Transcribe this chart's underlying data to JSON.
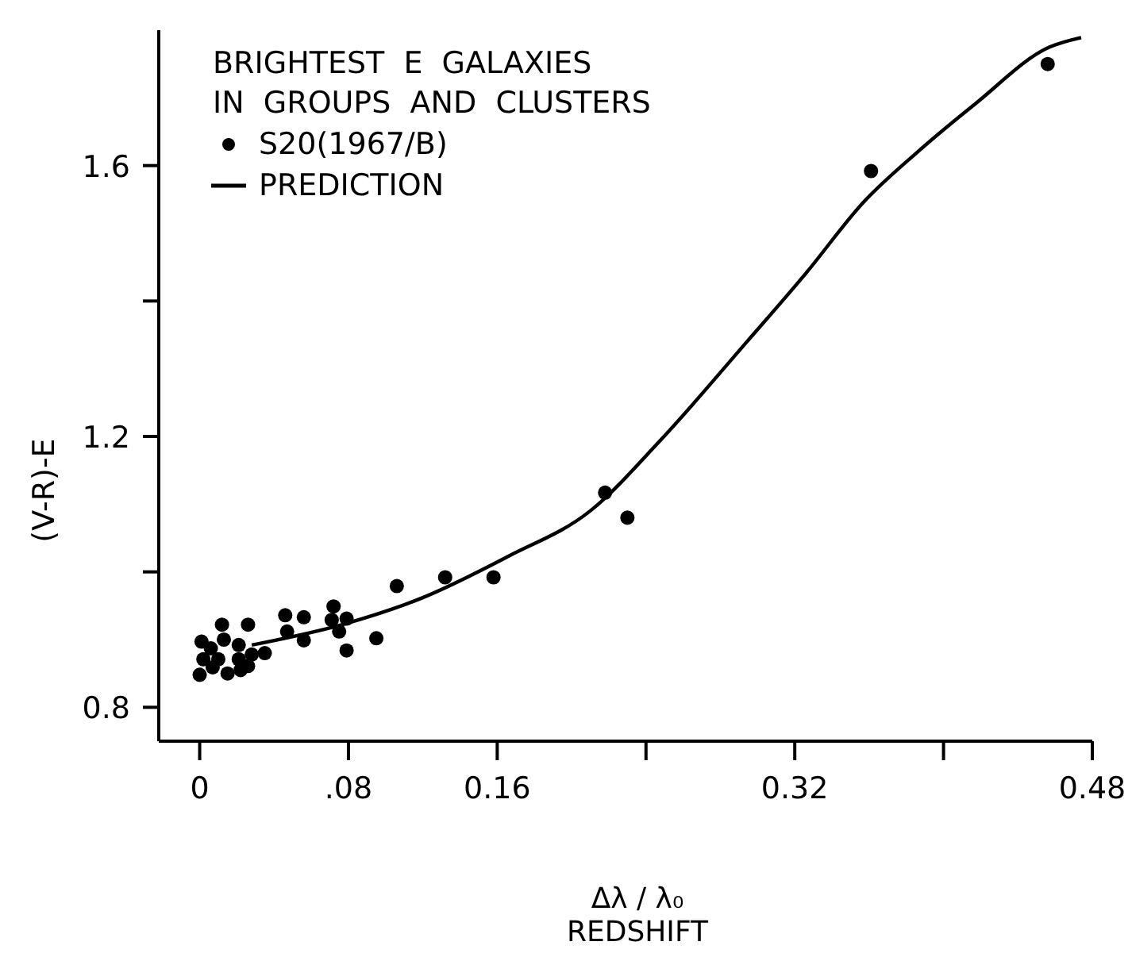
{
  "chart_data": {
    "type": "scatter",
    "title": "BRIGHTEST  E  GALAXIES\nIN  GROUPS  AND  CLUSTERS",
    "xlabel": "Δλ / λ₀\nREDSHIFT",
    "ylabel": "(V-R)-E",
    "xlim": [
      -0.022,
      0.48
    ],
    "ylim": [
      0.75,
      1.8
    ],
    "xticks": [
      0,
      {
        "value": 0.08,
        "label": ".08"
      },
      0.16,
      {
        "value": 0.24,
        "label": null
      },
      0.32,
      {
        "value": 0.4,
        "label": null
      },
      0.48
    ],
    "yticks": [
      0.8,
      {
        "value": 1.0,
        "label": null
      },
      1.2,
      {
        "value": 1.4,
        "label": null
      },
      1.6
    ],
    "legend": "top left",
    "series": [
      {
        "name": "S20(1967/B)",
        "marker": "circle",
        "color": "#000000",
        "x": [
          0.0,
          0.001,
          0.002,
          0.006,
          0.007,
          0.012,
          0.013,
          0.01,
          0.015,
          0.021,
          0.021,
          0.022,
          0.026,
          0.026,
          0.028,
          0.035,
          0.046,
          0.047,
          0.056,
          0.056,
          0.072,
          0.071,
          0.075,
          0.079,
          0.079,
          0.095,
          0.106,
          0.132,
          0.158,
          0.218,
          0.23,
          0.361,
          0.456
        ],
        "values": [
          0.848,
          0.897,
          0.871,
          0.887,
          0.859,
          0.922,
          0.9,
          0.871,
          0.85,
          0.892,
          0.871,
          0.855,
          0.922,
          0.861,
          0.878,
          0.88,
          0.936,
          0.912,
          0.933,
          0.899,
          0.949,
          0.929,
          0.912,
          0.931,
          0.884,
          0.902,
          0.979,
          0.992,
          0.992,
          1.117,
          1.08,
          1.592,
          1.75
        ]
      },
      {
        "name": "PREDICTION",
        "type": "line",
        "marker": "none",
        "line_style": "solid",
        "color": "#000000",
        "x": [
          0.028,
          0.079,
          0.12,
          0.166,
          0.21,
          0.248,
          0.294,
          0.326,
          0.357,
          0.386,
          0.417,
          0.457,
          0.474
        ],
        "values": [
          0.892,
          0.924,
          0.962,
          1.023,
          1.09,
          1.195,
          1.339,
          1.441,
          1.546,
          1.62,
          1.691,
          1.775,
          1.789
        ]
      }
    ]
  }
}
